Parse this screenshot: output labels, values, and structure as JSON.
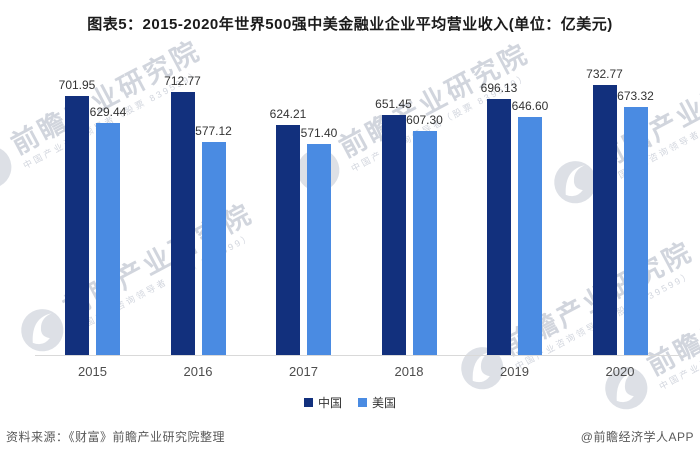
{
  "title": "图表5：2015-2020年世界500强中美金融业企业平均营业收入(单位：亿美元)",
  "chart_data": {
    "type": "bar",
    "categories": [
      "2015",
      "2016",
      "2017",
      "2018",
      "2019",
      "2020"
    ],
    "series": [
      {
        "name": "中国",
        "color": "#12307D",
        "values": [
          701.95,
          712.77,
          624.21,
          651.45,
          696.13,
          732.77
        ]
      },
      {
        "name": "美国",
        "color": "#4A8BE2",
        "values": [
          629.44,
          577.12,
          571.4,
          607.3,
          646.6,
          673.32
        ]
      }
    ],
    "title": "图表5：2015-2020年世界500强中美金融业企业平均营业收入(单位：亿美元)",
    "xlabel": "",
    "ylabel": "亿美元",
    "ylim": [
      0,
      760
    ],
    "grid": false,
    "legend_position": "bottom",
    "value_labels": true,
    "value_label_decimals": 2
  },
  "footer": {
    "source": "资料来源：《财富》前瞻产业研究院整理",
    "credit": "@前瞻经济学人APP"
  },
  "watermark": {
    "brand": "前瞻产业研究院",
    "tagline": "中国产业咨询领导者（股票 839599）",
    "color": "#76829b"
  },
  "colors": {
    "china_bar": "#12307D",
    "usa_bar": "#4A8BE2",
    "axis_line": "#d9d9d9",
    "value_label": "#333333",
    "tick_label": "#4d4d4d",
    "footer_text": "#595959",
    "background": "#ffffff"
  }
}
